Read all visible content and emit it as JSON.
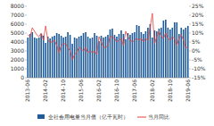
{
  "chart_data": {
    "type": "bar",
    "categories": [
      "2013-06",
      null,
      null,
      null,
      null,
      null,
      null,
      null,
      "2014-02",
      null,
      null,
      null,
      null,
      null,
      null,
      null,
      "2014-10",
      null,
      null,
      null,
      null,
      null,
      null,
      null,
      "2015-06",
      null,
      null,
      null,
      null,
      null,
      null,
      null,
      "2016-02",
      null,
      null,
      null,
      null,
      null,
      null,
      null,
      "2016-10",
      null,
      null,
      null,
      null,
      null,
      null,
      null,
      "2017-06",
      null,
      null,
      null,
      null,
      null,
      null,
      null,
      "2018-02",
      null,
      null,
      null,
      null,
      null,
      null,
      null,
      "2018-10",
      null,
      null,
      null,
      null,
      null,
      null,
      null,
      "2019-06"
    ],
    "series": [
      {
        "name": "全社会用电量当月值（亿千瓦时）",
        "type": "bar",
        "color": "#1f5c99",
        "values": [
          4500,
          4900,
          5100,
          4500,
          4400,
          4500,
          4900,
          4700,
          3900,
          4600,
          4400,
          4600,
          4700,
          5000,
          4900,
          4700,
          4500,
          4600,
          5100,
          4800,
          3800,
          4500,
          4400,
          4600,
          4700,
          5000,
          5100,
          4600,
          4400,
          4500,
          5000,
          4700,
          4100,
          4700,
          4500,
          4600,
          4800,
          5400,
          5500,
          4800,
          4600,
          4900,
          5300,
          4900,
          4300,
          5000,
          4800,
          5000,
          5100,
          5900,
          5800,
          5100,
          4900,
          5200,
          5600,
          6000,
          4500,
          5300,
          5200,
          5500,
          5600,
          6400,
          6500,
          5600,
          5400,
          5600,
          6200,
          6200,
          4900,
          5600,
          5400,
          5600,
          5800
        ]
      },
      {
        "name": "当月同比",
        "type": "line",
        "color": "#e8413c",
        "axis": "y2",
        "values": [
          9,
          8,
          13,
          11,
          9,
          8,
          10,
          6,
          14,
          6,
          5,
          5,
          6,
          3,
          -1,
          3,
          4,
          4,
          2,
          0,
          -5,
          -2,
          -1,
          2,
          1,
          0,
          2,
          -1,
          0,
          -1,
          0,
          -2,
          8,
          5,
          2,
          2,
          3,
          8,
          8,
          7,
          5,
          6,
          7,
          3,
          11,
          8,
          6,
          5,
          6,
          7,
          6,
          7,
          5,
          7,
          6,
          13,
          21,
          4,
          8,
          11,
          8,
          7,
          10,
          7,
          6,
          8,
          7,
          3,
          7,
          9,
          6,
          2,
          2
        ]
      }
    ],
    "ylim": [
      0,
      8000
    ],
    "yticks": [
      0,
      1000,
      2000,
      3000,
      4000,
      5000,
      6000,
      7000,
      8000
    ],
    "y2lim": [
      -15,
      25
    ],
    "y2ticks": [
      {
        "value": -15,
        "label": "-15%"
      },
      {
        "value": -10,
        "label": "-10%"
      },
      {
        "value": -5,
        "label": "-5%"
      },
      {
        "value": 0,
        "label": "0%"
      },
      {
        "value": 5,
        "label": "5%"
      },
      {
        "value": 10,
        "label": "10%"
      },
      {
        "value": 15,
        "label": "15%"
      },
      {
        "value": 20,
        "label": "20%"
      },
      {
        "value": 25,
        "label": "25%"
      }
    ],
    "grid": false,
    "legend": "bottom"
  }
}
